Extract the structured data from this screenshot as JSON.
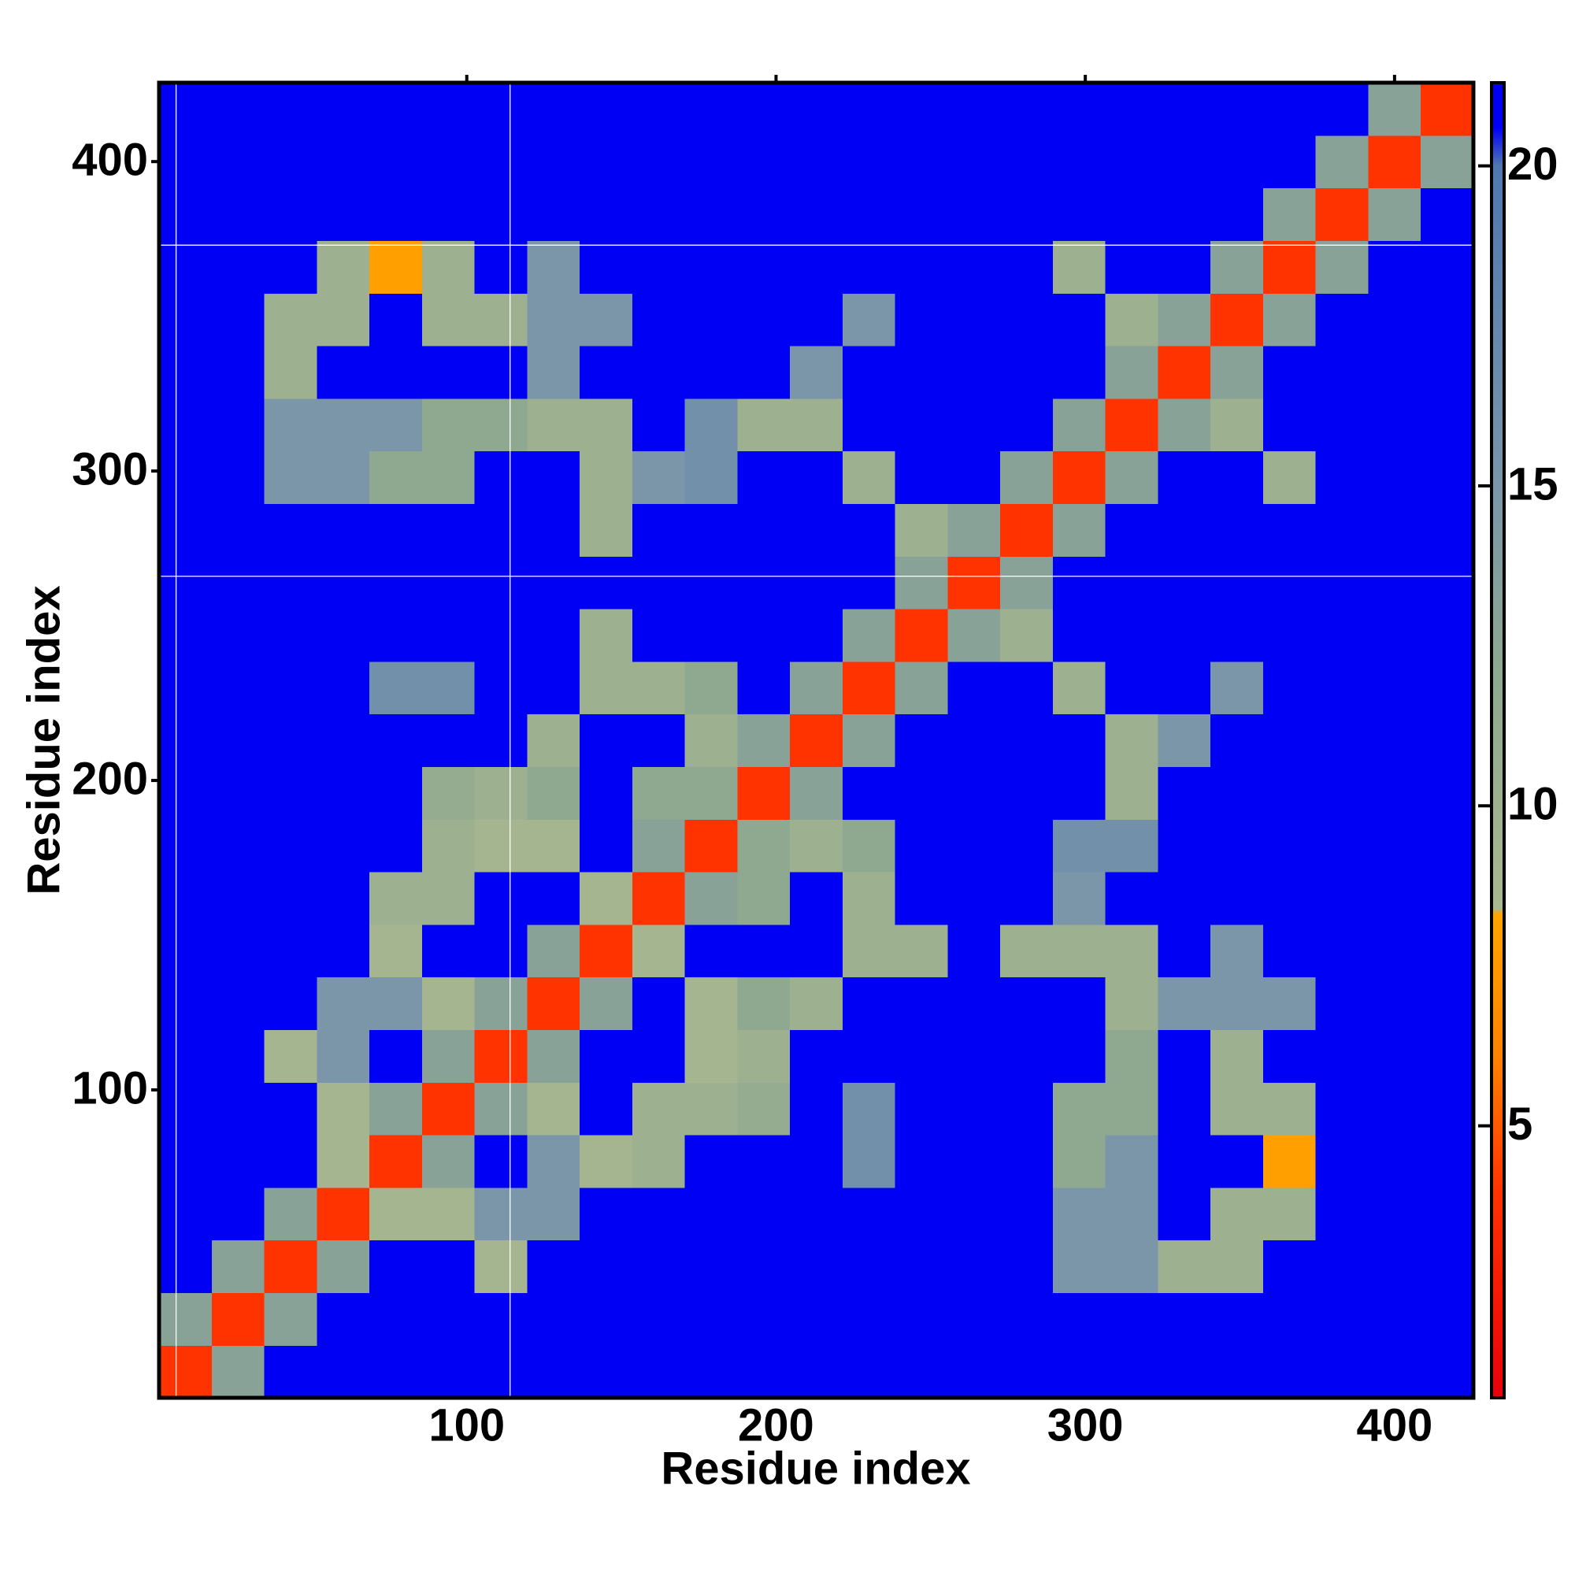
{
  "chart_data": {
    "type": "heatmap",
    "x_label": "Residue index",
    "y_label": "Residue index",
    "x": [
      9,
      26,
      43,
      60,
      77,
      94,
      111,
      128,
      145,
      162,
      179,
      196,
      213,
      230,
      247,
      264,
      281,
      298,
      315,
      332,
      349,
      366,
      383,
      400,
      417
    ],
    "y": [
      9,
      26,
      43,
      60,
      77,
      94,
      111,
      128,
      145,
      162,
      179,
      196,
      213,
      230,
      247,
      264,
      281,
      298,
      315,
      332,
      349,
      366,
      383,
      400,
      417
    ],
    "z": [
      [
        4,
        13,
        21,
        21,
        21,
        21,
        21,
        21,
        21,
        21,
        21,
        21,
        21,
        21,
        21,
        21,
        21,
        21,
        21,
        21,
        21,
        21,
        21,
        21,
        21
      ],
      [
        13,
        4,
        13,
        21,
        21,
        21,
        21,
        21,
        21,
        21,
        21,
        21,
        21,
        21,
        21,
        21,
        21,
        21,
        21,
        21,
        21,
        21,
        21,
        21,
        21
      ],
      [
        21,
        13,
        4,
        13,
        21,
        21,
        9,
        21,
        21,
        21,
        21,
        21,
        21,
        21,
        21,
        21,
        21,
        15,
        15,
        10,
        10,
        21,
        21,
        21,
        21
      ],
      [
        21,
        21,
        13,
        4,
        9,
        9,
        15,
        15,
        21,
        21,
        21,
        21,
        21,
        21,
        21,
        21,
        21,
        15,
        15,
        21,
        10,
        10,
        21,
        21,
        21
      ],
      [
        21,
        21,
        21,
        9,
        4,
        13,
        21,
        15,
        9,
        10,
        21,
        21,
        21,
        16,
        21,
        21,
        21,
        12,
        15,
        21,
        21,
        8,
        21,
        21,
        21
      ],
      [
        21,
        21,
        21,
        9,
        13,
        4,
        13,
        9,
        21,
        10,
        10,
        11,
        21,
        16,
        21,
        21,
        21,
        12,
        12,
        21,
        10,
        10,
        21,
        21,
        21
      ],
      [
        21,
        21,
        9,
        15,
        21,
        13,
        4,
        13,
        21,
        21,
        9,
        10,
        21,
        21,
        21,
        21,
        21,
        21,
        12,
        21,
        10,
        21,
        21,
        21,
        21
      ],
      [
        21,
        21,
        21,
        15,
        15,
        9,
        13,
        4,
        13,
        21,
        9,
        12,
        10,
        21,
        21,
        21,
        21,
        21,
        10,
        15,
        15,
        15,
        21,
        21,
        21
      ],
      [
        21,
        21,
        21,
        21,
        9,
        21,
        21,
        13,
        4,
        9,
        21,
        21,
        21,
        10,
        10,
        21,
        10,
        10,
        10,
        21,
        15,
        21,
        21,
        21,
        21
      ],
      [
        21,
        21,
        21,
        21,
        10,
        10,
        21,
        21,
        9,
        4,
        13,
        12,
        21,
        10,
        21,
        21,
        21,
        15,
        21,
        21,
        21,
        21,
        21,
        21,
        21
      ],
      [
        21,
        21,
        21,
        21,
        21,
        10,
        9,
        9,
        21,
        13,
        4,
        12,
        10,
        12,
        21,
        21,
        21,
        16,
        16,
        21,
        21,
        21,
        21,
        21,
        21
      ],
      [
        21,
        21,
        21,
        21,
        21,
        11,
        10,
        12,
        21,
        12,
        12,
        4,
        13,
        21,
        21,
        21,
        21,
        21,
        10,
        21,
        21,
        21,
        21,
        21,
        21
      ],
      [
        21,
        21,
        21,
        21,
        21,
        21,
        21,
        10,
        21,
        21,
        10,
        13,
        4,
        13,
        21,
        21,
        21,
        21,
        10,
        15,
        21,
        21,
        21,
        21,
        21
      ],
      [
        21,
        21,
        21,
        21,
        16,
        16,
        21,
        21,
        10,
        10,
        12,
        21,
        13,
        4,
        13,
        21,
        21,
        10,
        21,
        21,
        15,
        21,
        21,
        21,
        21
      ],
      [
        21,
        21,
        21,
        21,
        21,
        21,
        21,
        21,
        10,
        21,
        21,
        21,
        21,
        13,
        4,
        13,
        10,
        21,
        21,
        21,
        21,
        21,
        21,
        21,
        21
      ],
      [
        21,
        21,
        21,
        21,
        21,
        21,
        21,
        21,
        21,
        21,
        21,
        21,
        21,
        21,
        13,
        4,
        13,
        21,
        21,
        21,
        21,
        21,
        21,
        21,
        21
      ],
      [
        21,
        21,
        21,
        21,
        21,
        21,
        21,
        21,
        10,
        21,
        21,
        21,
        21,
        21,
        10,
        13,
        4,
        13,
        21,
        21,
        21,
        21,
        21,
        21,
        21
      ],
      [
        21,
        21,
        15,
        15,
        12,
        12,
        21,
        21,
        10,
        15,
        16,
        21,
        21,
        10,
        21,
        21,
        13,
        4,
        13,
        21,
        21,
        10,
        21,
        21,
        21
      ],
      [
        21,
        21,
        15,
        15,
        15,
        12,
        12,
        10,
        10,
        21,
        16,
        10,
        10,
        21,
        21,
        21,
        21,
        13,
        4,
        13,
        10,
        21,
        21,
        21,
        21
      ],
      [
        21,
        21,
        10,
        21,
        21,
        21,
        21,
        15,
        21,
        21,
        21,
        21,
        15,
        21,
        21,
        21,
        21,
        21,
        13,
        4,
        13,
        21,
        21,
        21,
        21
      ],
      [
        21,
        21,
        10,
        10,
        21,
        10,
        10,
        15,
        15,
        21,
        21,
        21,
        21,
        15,
        21,
        21,
        21,
        21,
        10,
        13,
        4,
        13,
        21,
        21,
        21
      ],
      [
        21,
        21,
        21,
        10,
        8,
        10,
        21,
        15,
        21,
        21,
        21,
        21,
        21,
        21,
        21,
        21,
        21,
        10,
        21,
        21,
        13,
        4,
        13,
        21,
        21
      ],
      [
        21,
        21,
        21,
        21,
        21,
        21,
        21,
        21,
        21,
        21,
        21,
        21,
        21,
        21,
        21,
        21,
        21,
        21,
        21,
        21,
        21,
        13,
        4,
        13,
        21
      ],
      [
        21,
        21,
        21,
        21,
        21,
        21,
        21,
        21,
        21,
        21,
        21,
        21,
        21,
        21,
        21,
        21,
        21,
        21,
        21,
        21,
        21,
        21,
        13,
        4,
        13
      ],
      [
        21,
        21,
        21,
        21,
        21,
        21,
        21,
        21,
        21,
        21,
        21,
        21,
        21,
        21,
        21,
        21,
        21,
        21,
        21,
        21,
        21,
        21,
        21,
        13,
        4
      ]
    ],
    "xlim": [
      0.5,
      425.5
    ],
    "ylim": [
      0.5,
      425.5
    ],
    "xticks": [
      100,
      200,
      300,
      400
    ],
    "yticks": [
      100,
      200,
      300,
      400
    ],
    "domain_lines": {
      "x": [
        6,
        114
      ],
      "y": [
        266,
        373
      ],
      "color": "#ffffff"
    },
    "colorbar": {
      "lim": [
        0.75,
        21.3
      ],
      "ticks": [
        5,
        10,
        15,
        20
      ]
    },
    "colorscale": [
      {
        "value": 0.75,
        "color": "#e8000a"
      },
      {
        "value": 4,
        "color": "#ff3300"
      },
      {
        "value": 6,
        "color": "#ff8000"
      },
      {
        "value": 8.3,
        "color": "#ffa500"
      },
      {
        "value": 8.4,
        "color": "#a8b890"
      },
      {
        "value": 12,
        "color": "#8fa890"
      },
      {
        "value": 15,
        "color": "#7b96a8"
      },
      {
        "value": 20,
        "color": "#4f78b0"
      },
      {
        "value": 20.6,
        "color": "#0000f5"
      },
      {
        "value": 21.3,
        "color": "#0000f5"
      }
    ]
  }
}
